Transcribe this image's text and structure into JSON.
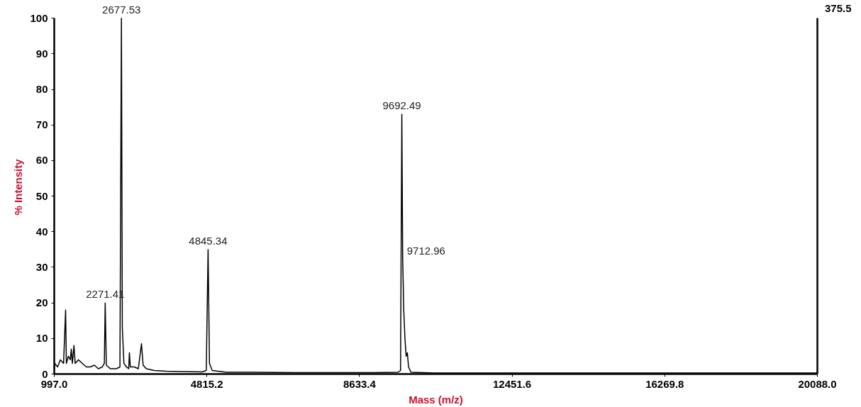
{
  "chart_data": {
    "type": "line",
    "xlabel": "Mass (m/z)",
    "ylabel": "% Intensity",
    "xlim": [
      997.0,
      20088.0
    ],
    "xticks": [
      {
        "value": 997.0,
        "label": "997.0"
      },
      {
        "value": 4815.2,
        "label": "4815.2"
      },
      {
        "value": 8633.4,
        "label": "8633.4"
      },
      {
        "value": 12451.6,
        "label": "12451.6"
      },
      {
        "value": 16269.8,
        "label": "16269.8"
      },
      {
        "value": 20088.0,
        "label": "20088.0"
      }
    ],
    "ylim": [
      0,
      100
    ],
    "yticks": [
      0,
      10,
      20,
      30,
      40,
      50,
      60,
      70,
      80,
      90,
      100
    ],
    "grid": false,
    "series": [
      {
        "color": "#000000",
        "x": [
          997,
          1010,
          1080,
          1150,
          1230,
          1281,
          1300,
          1350,
          1400,
          1423,
          1450,
          1490,
          1520,
          1600,
          1700,
          1800,
          1900,
          2000,
          2100,
          2200,
          2250,
          2271.41,
          2300,
          2400,
          2550,
          2640,
          2677.53,
          2700,
          2740,
          2800,
          2860,
          2877,
          2900,
          3000,
          3100,
          3179,
          3220,
          3300,
          3500,
          3800,
          4200,
          4700,
          4800,
          4845.34,
          4880,
          4950,
          5300,
          6000,
          7000,
          8000,
          9000,
          9600,
          9660,
          9692.49,
          9712.96,
          9740,
          9770,
          9800,
          9830,
          9860,
          9920,
          10500,
          12000,
          14000,
          16000,
          18000,
          20088
        ],
        "values": [
          1,
          3,
          2,
          4,
          3,
          18,
          3,
          5,
          4,
          7,
          3,
          8,
          3,
          4,
          3,
          2,
          2,
          2.5,
          1.5,
          2,
          3,
          20,
          2.5,
          1.5,
          1.5,
          2,
          100,
          13,
          3,
          2,
          1.5,
          6,
          2,
          2,
          1.5,
          8.5,
          2.5,
          1.5,
          1,
          0.8,
          0.7,
          0.6,
          1,
          35,
          3,
          1,
          0.5,
          0.5,
          0.4,
          0.4,
          0.4,
          0.5,
          1,
          73,
          33,
          18,
          10,
          5,
          6,
          2,
          0.5,
          0.3,
          0.3,
          0.3,
          0.3,
          0.3,
          0.3
        ]
      }
    ],
    "annotations": [
      {
        "text": "2271.41",
        "x": 2271.41,
        "y": 20
      },
      {
        "text": "2677.53",
        "x": 2677.53,
        "y": 100
      },
      {
        "text": "4845.34",
        "x": 4845.34,
        "y": 35
      },
      {
        "text": "9692.49",
        "x": 9692.49,
        "y": 73
      },
      {
        "text": "9712.96",
        "x": 9712.96,
        "y": 33
      },
      "375.5"
    ]
  }
}
